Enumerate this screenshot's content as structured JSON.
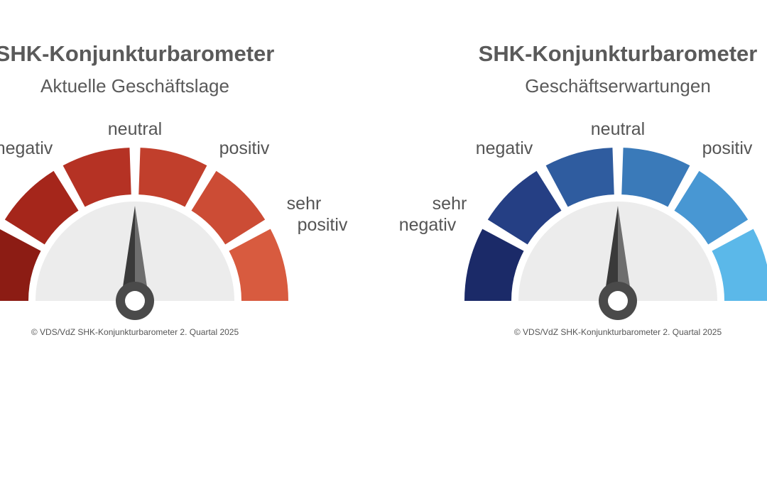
{
  "gauges": [
    {
      "title": "SHK-Konjunkturbarometer",
      "subtitle": "Aktuelle Geschäftslage",
      "labels": [
        "negativ",
        "neutral",
        "positiv",
        "sehr",
        "positiv"
      ],
      "source": "© VDS/VdZ SHK-Konjunkturbarometer 2. Quartal 2025"
    },
    {
      "title": "SHK-Konjunkturbarometer",
      "subtitle": "Geschäftserwartungen",
      "labels": [
        "sehr",
        "negativ",
        "negativ",
        "neutral",
        "positiv"
      ],
      "source": "© VDS/VdZ SHK-Konjunkturbarometer 2. Quartal 2025"
    }
  ]
}
